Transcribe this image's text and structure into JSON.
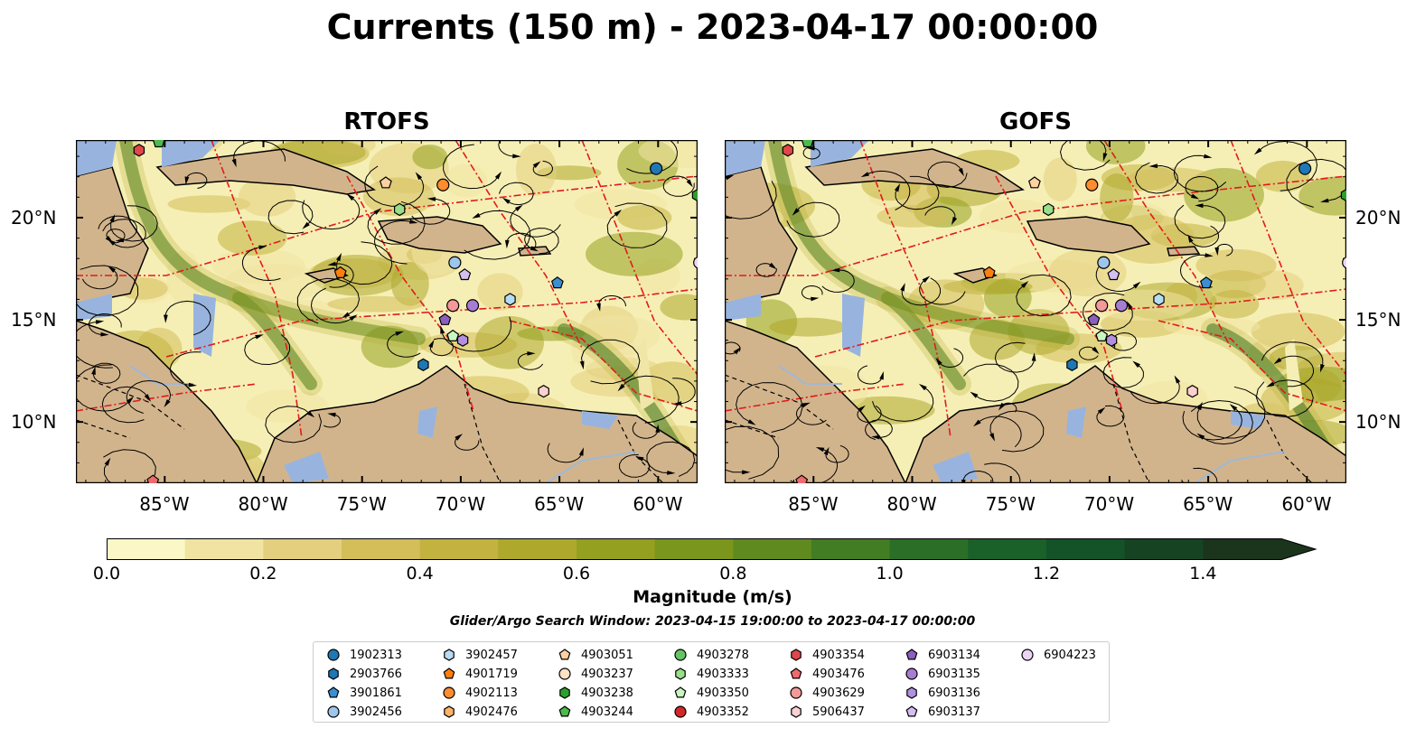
{
  "title": "Currents (150 m) - 2023-04-17 00:00:00",
  "panels": [
    {
      "title": "RTOFS"
    },
    {
      "title": "GOFS"
    }
  ],
  "x_ticks": [
    "85°W",
    "80°W",
    "75°W",
    "70°W",
    "65°W",
    "60°W"
  ],
  "y_ticks": [
    "20°N",
    "15°N",
    "10°N"
  ],
  "colorbar": {
    "label": "Magnitude (m/s)",
    "ticks": [
      "0.0",
      "0.2",
      "0.4",
      "0.6",
      "0.8",
      "1.0",
      "1.2",
      "1.4"
    ],
    "min": 0.0,
    "max": 1.5,
    "extend": "max",
    "colors": [
      "#fcf7c6",
      "#f1e4a2",
      "#e3cf7e",
      "#d4be5a",
      "#c3b23f",
      "#aea82c",
      "#94a01f",
      "#7a961c",
      "#5f8a1f",
      "#427c23",
      "#2a6e27",
      "#1a6029",
      "#145227",
      "#164423",
      "#1b351d"
    ]
  },
  "search_window": "Glider/Argo Search Window: 2023-04-15 19:00:00 to 2023-04-17 00:00:00",
  "legend": [
    {
      "id": "1902313",
      "marker": "circle",
      "color": "#1f77b4"
    },
    {
      "id": "2903766",
      "marker": "hexagon",
      "color": "#1f77b4"
    },
    {
      "id": "3901861",
      "marker": "pentagon",
      "color": "#3a8fd0"
    },
    {
      "id": "3902456",
      "marker": "circle",
      "color": "#9ec5ea"
    },
    {
      "id": "3902457",
      "marker": "hexagon",
      "color": "#b6dcf4"
    },
    {
      "id": "4901719",
      "marker": "pentagon",
      "color": "#ff7f0e"
    },
    {
      "id": "4902113",
      "marker": "circle",
      "color": "#ff8c2f"
    },
    {
      "id": "4902476",
      "marker": "hexagon",
      "color": "#ffb366"
    },
    {
      "id": "4903051",
      "marker": "pentagon",
      "color": "#fdd0a2"
    },
    {
      "id": "4903237",
      "marker": "circle",
      "color": "#fde2c6"
    },
    {
      "id": "4903238",
      "marker": "hexagon",
      "color": "#2ca02c"
    },
    {
      "id": "4903244",
      "marker": "pentagon",
      "color": "#4cbb4c"
    },
    {
      "id": "4903278",
      "marker": "circle",
      "color": "#66c266"
    },
    {
      "id": "4903333",
      "marker": "hexagon",
      "color": "#98df8a"
    },
    {
      "id": "4903350",
      "marker": "pentagon",
      "color": "#c9f5c1"
    },
    {
      "id": "4903352",
      "marker": "circle",
      "color": "#d62728"
    },
    {
      "id": "4903354",
      "marker": "hexagon",
      "color": "#e0474a"
    },
    {
      "id": "4903476",
      "marker": "pentagon",
      "color": "#ee6a6d"
    },
    {
      "id": "4903629",
      "marker": "circle",
      "color": "#f4999a"
    },
    {
      "id": "5906437",
      "marker": "hexagon",
      "color": "#fbd0d1"
    },
    {
      "id": "6903134",
      "marker": "pentagon",
      "color": "#8c5fbf"
    },
    {
      "id": "6903135",
      "marker": "circle",
      "color": "#a77dd4"
    },
    {
      "id": "6903136",
      "marker": "hexagon",
      "color": "#b38fe0"
    },
    {
      "id": "6903137",
      "marker": "pentagon",
      "color": "#d4bff0"
    },
    {
      "id": "6904223",
      "marker": "circle",
      "color": "#ecd6f7"
    }
  ],
  "map_extent": {
    "lon": [
      -89.5,
      -58.0
    ],
    "lat": [
      7.0,
      23.8
    ]
  },
  "platform_positions": [
    {
      "id": "4903354",
      "lon": -86.3,
      "lat": 23.3
    },
    {
      "id": "4903244",
      "lon": -85.3,
      "lat": 23.7
    },
    {
      "id": "4903051",
      "lon": -73.8,
      "lat": 21.7
    },
    {
      "id": "4903333",
      "lon": -73.1,
      "lat": 20.4
    },
    {
      "id": "4902113",
      "lon": -70.9,
      "lat": 21.6
    },
    {
      "id": "1902313",
      "lon": -60.1,
      "lat": 22.4
    },
    {
      "id": "4903238",
      "lon": -58.0,
      "lat": 21.1
    },
    {
      "id": "4901719",
      "lon": -76.1,
      "lat": 17.3
    },
    {
      "id": "3902456",
      "lon": -70.3,
      "lat": 17.8
    },
    {
      "id": "6903137",
      "lon": -69.8,
      "lat": 17.2
    },
    {
      "id": "3902457",
      "lon": -67.5,
      "lat": 16.0
    },
    {
      "id": "3901861",
      "lon": -65.1,
      "lat": 16.8
    },
    {
      "id": "6904223",
      "lon": -57.9,
      "lat": 17.8
    },
    {
      "id": "4903629",
      "lon": -70.4,
      "lat": 15.7
    },
    {
      "id": "6903135",
      "lon": -69.4,
      "lat": 15.7
    },
    {
      "id": "6903134",
      "lon": -70.8,
      "lat": 15.0
    },
    {
      "id": "4903350",
      "lon": -70.4,
      "lat": 14.2
    },
    {
      "id": "6903136",
      "lon": -69.9,
      "lat": 14.0
    },
    {
      "id": "2903766",
      "lon": -71.9,
      "lat": 12.8
    },
    {
      "id": "4903476",
      "lon": -85.6,
      "lat": 7.1
    },
    {
      "id": "5906437",
      "lon": -65.8,
      "lat": 11.5
    }
  ]
}
